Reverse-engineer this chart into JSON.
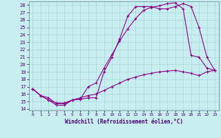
{
  "bg_color": "#c8eef0",
  "line_color": "#8b008b",
  "grid_color": "#a8d8dc",
  "xlabel": "Windchill (Refroidissement éolien,°C)",
  "xlim": [
    -0.5,
    23.5
  ],
  "ylim": [
    13.8,
    28.5
  ],
  "xticks": [
    0,
    1,
    2,
    3,
    4,
    5,
    6,
    7,
    8,
    9,
    10,
    11,
    12,
    13,
    14,
    15,
    16,
    17,
    18,
    19,
    20,
    21,
    22,
    23
  ],
  "yticks": [
    14,
    15,
    16,
    17,
    18,
    19,
    20,
    21,
    22,
    23,
    24,
    25,
    26,
    27,
    28
  ],
  "line1_x": [
    0,
    1,
    2,
    3,
    4,
    5,
    6,
    7,
    8,
    9,
    10,
    11,
    12,
    13,
    14,
    15,
    16,
    17,
    18,
    19,
    20,
    21,
    22,
    23
  ],
  "line1_y": [
    16.7,
    15.8,
    15.2,
    14.5,
    14.5,
    15.2,
    15.3,
    15.5,
    15.5,
    19.0,
    21.0,
    23.5,
    26.5,
    27.8,
    27.8,
    27.8,
    27.5,
    27.5,
    27.8,
    28.2,
    27.8,
    25.0,
    21.0,
    19.2
  ],
  "line2_x": [
    0,
    1,
    2,
    3,
    4,
    5,
    6,
    7,
    8,
    9,
    10,
    11,
    12,
    13,
    14,
    15,
    16,
    17,
    18,
    19,
    20,
    21,
    22,
    23
  ],
  "line2_y": [
    16.7,
    15.8,
    15.2,
    14.8,
    14.8,
    15.2,
    15.3,
    17.0,
    17.5,
    19.5,
    21.3,
    23.2,
    24.8,
    26.2,
    27.3,
    27.7,
    27.9,
    28.2,
    28.3,
    27.5,
    21.2,
    21.0,
    19.5,
    19.2
  ],
  "line3_x": [
    0,
    1,
    2,
    3,
    4,
    5,
    6,
    7,
    8,
    9,
    10,
    11,
    12,
    13,
    14,
    15,
    16,
    17,
    18,
    19,
    20,
    21,
    22,
    23
  ],
  "line3_y": [
    16.7,
    15.8,
    15.5,
    14.7,
    14.7,
    15.2,
    15.5,
    15.8,
    16.0,
    16.5,
    17.0,
    17.5,
    18.0,
    18.3,
    18.6,
    18.8,
    19.0,
    19.1,
    19.2,
    19.0,
    18.8,
    18.5,
    19.0,
    19.2
  ]
}
